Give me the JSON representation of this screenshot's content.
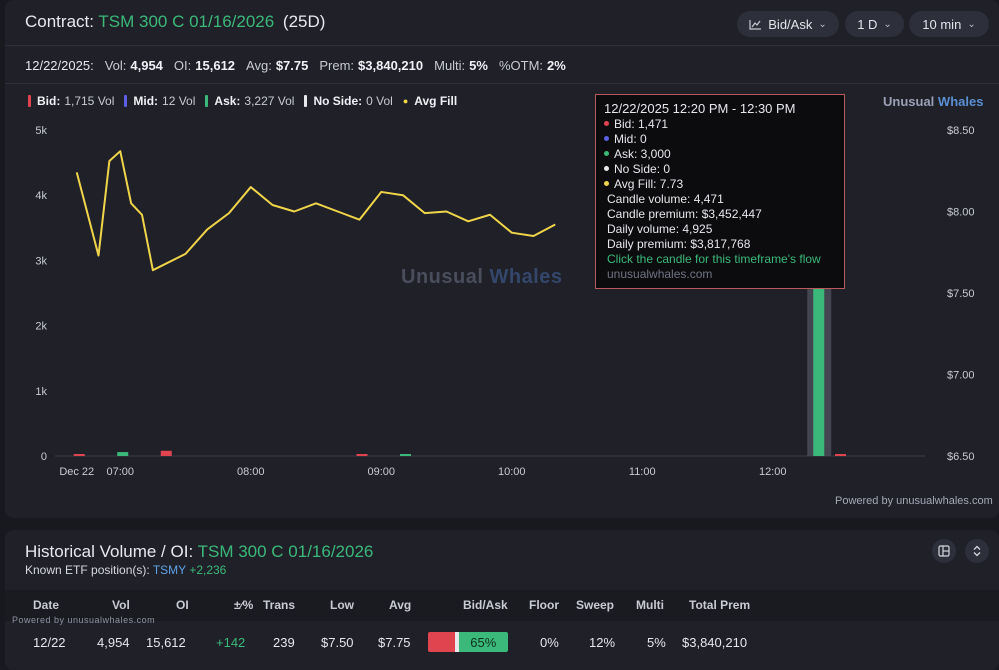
{
  "header": {
    "contract_label": "Contract:",
    "contract_name": "TSM 300 C 01/16/2026",
    "days": "(25D)",
    "buttons": {
      "bid_ask": "Bid/Ask",
      "range": "1 D",
      "interval": "10 min"
    }
  },
  "stats": {
    "date": "12/22/2025:",
    "vol_label": "Vol:",
    "vol": "4,954",
    "oi_label": "OI:",
    "oi": "15,612",
    "avg_label": "Avg:",
    "avg": "$7.75",
    "prem_label": "Prem:",
    "prem": "$3,840,210",
    "multi_label": "Multi:",
    "multi": "5%",
    "otm_label": "%OTM:",
    "otm": "2%"
  },
  "legend": {
    "bid_label": "Bid:",
    "bid": "1,715 Vol",
    "mid_label": "Mid:",
    "mid": "12 Vol",
    "ask_label": "Ask:",
    "ask": "3,227 Vol",
    "noside_label": "No Side:",
    "noside": "0 Vol",
    "avg_fill": "Avg Fill"
  },
  "brand": {
    "part1": "Unusual",
    "part2": "Whales"
  },
  "watermark": {
    "part1": "Unusual",
    "part2": "Whales"
  },
  "powered": "Powered by unusualwhales.com",
  "powered_small": "Powered by unusualwhales.com",
  "colors": {
    "bid": "#e0454f",
    "mid": "#5b5fe0",
    "ask": "#3bb97a",
    "no_side": "#e8e8ec",
    "avg_fill": "#f0d54a",
    "accent": "#3bb97a"
  },
  "chart_data": {
    "type": "bar+line",
    "ylim_left": [
      0,
      5000
    ],
    "ylim_right": [
      6.5,
      8.5
    ],
    "y_ticks_left": [
      "0",
      "1k",
      "2k",
      "3k",
      "4k",
      "5k"
    ],
    "y_ticks_right": [
      "$6.50",
      "$7.00",
      "$7.50",
      "$8.00",
      "$8.50"
    ],
    "x_ticks": [
      "Dec 22",
      "07:00",
      "08:00",
      "09:00",
      "10:00",
      "11:00",
      "12:00"
    ],
    "x_range": [
      "06:30",
      "13:10"
    ],
    "volume_bars": [
      {
        "time": "06:40",
        "side": "bid",
        "value": 20
      },
      {
        "time": "07:00",
        "side": "ask",
        "value": 60
      },
      {
        "time": "07:20",
        "side": "bid",
        "value": 80
      },
      {
        "time": "08:50",
        "side": "bid",
        "value": 20
      },
      {
        "time": "09:10",
        "side": "ask",
        "value": 30
      },
      {
        "time": "12:20",
        "side": "ask",
        "value": 3000
      },
      {
        "time": "12:20",
        "side": "bid",
        "value": 1471
      },
      {
        "time": "12:30",
        "side": "bid",
        "value": 20
      }
    ],
    "avg_fill": [
      {
        "time": "06:40",
        "value": 8.24
      },
      {
        "time": "06:50",
        "value": 7.73
      },
      {
        "time": "06:55",
        "value": 8.31
      },
      {
        "time": "07:00",
        "value": 8.37
      },
      {
        "time": "07:05",
        "value": 8.05
      },
      {
        "time": "07:10",
        "value": 7.98
      },
      {
        "time": "07:15",
        "value": 7.64
      },
      {
        "time": "07:30",
        "value": 7.74
      },
      {
        "time": "07:40",
        "value": 7.89
      },
      {
        "time": "07:50",
        "value": 7.99
      },
      {
        "time": "08:00",
        "value": 8.15
      },
      {
        "time": "08:10",
        "value": 8.04
      },
      {
        "time": "08:20",
        "value": 8.0
      },
      {
        "time": "08:30",
        "value": 8.05
      },
      {
        "time": "08:40",
        "value": 8.0
      },
      {
        "time": "08:50",
        "value": 7.95
      },
      {
        "time": "09:00",
        "value": 8.12
      },
      {
        "time": "09:10",
        "value": 8.1
      },
      {
        "time": "09:20",
        "value": 7.99
      },
      {
        "time": "09:30",
        "value": 8.0
      },
      {
        "time": "09:40",
        "value": 7.94
      },
      {
        "time": "09:50",
        "value": 7.98
      },
      {
        "time": "10:00",
        "value": 7.87
      },
      {
        "time": "10:10",
        "value": 7.85
      },
      {
        "time": "10:20",
        "value": 7.92
      },
      {
        "time": "12:10",
        "value": 7.78
      },
      {
        "time": "12:20",
        "value": 7.73
      },
      {
        "time": "12:30",
        "value": 7.74
      }
    ],
    "highlight": {
      "time": "12:20"
    }
  },
  "tooltip": {
    "title": "12/22/2025 12:20 PM - 12:30 PM",
    "bid": "Bid: 1,471",
    "mid": "Mid: 0",
    "ask": "Ask: 3,000",
    "no_side": "No Side: 0",
    "avg_fill": "Avg Fill: 7.73",
    "candle_volume": "Candle volume: 4,471",
    "candle_premium": "Candle premium: $3,452,447",
    "daily_volume": "Daily volume: 4,925",
    "daily_premium": "Daily premium: $3,817,768",
    "click_hint": "Click the candle for this timeframe's flow",
    "site": "unusualwhales.com"
  },
  "history": {
    "title": "Historical Volume / OI:",
    "contract": "TSM 300 C 01/16/2026",
    "etf_label": "Known ETF position(s):",
    "etf_ticker": "TSMY",
    "etf_change": "+2,236",
    "columns": [
      "Date",
      "Vol",
      "OI",
      "±⁄%",
      "Trans",
      "Low",
      "Avg",
      "Bid/Ask",
      "Floor",
      "Sweep",
      "Multi",
      "Total Prem"
    ],
    "row": {
      "date": "12/22",
      "vol": "4,954",
      "oi": "15,612",
      "change": "+142",
      "trans": "239",
      "low": "$7.50",
      "avg": "$7.75",
      "bidask_pct": "65%",
      "bid_fraction": 0.35,
      "ask_fraction": 0.65,
      "floor": "0%",
      "sweep": "12%",
      "multi": "5%",
      "total_prem": "$3,840,210"
    }
  }
}
